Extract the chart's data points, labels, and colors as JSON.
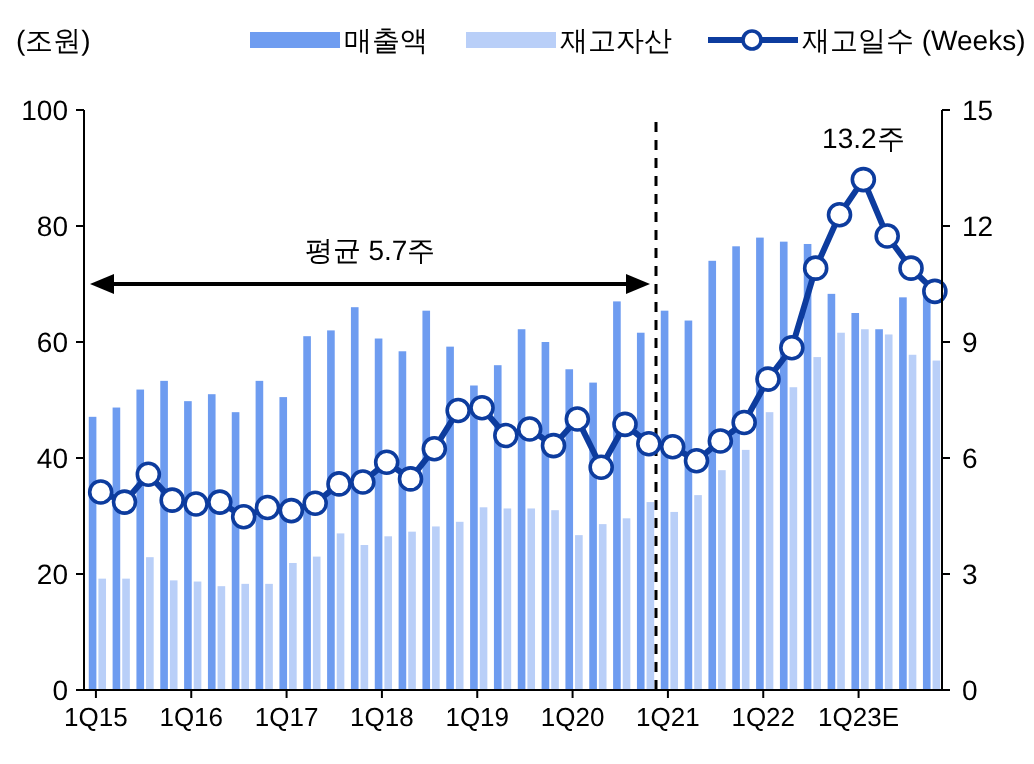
{
  "chart_data": {
    "type": "bar",
    "ylabel": "(조원)",
    "categories": [
      "1Q15",
      null,
      null,
      null,
      "1Q16",
      null,
      null,
      null,
      "1Q17",
      null,
      null,
      null,
      "1Q18",
      null,
      null,
      null,
      "1Q19",
      null,
      null,
      null,
      "1Q20",
      null,
      null,
      null,
      "1Q21",
      null,
      null,
      null,
      "1Q22",
      null,
      null,
      null,
      "1Q23E",
      null,
      null,
      null
    ],
    "series": [
      {
        "name": "매출액",
        "color": "#6e9cf0",
        "values": [
          47.1,
          48.7,
          51.8,
          53.3,
          49.8,
          51,
          47.9,
          53.3,
          50.5,
          61,
          62,
          66,
          60.6,
          58.4,
          65.4,
          59.2,
          52.5,
          56,
          62.2,
          60,
          55.3,
          53,
          67,
          61.6,
          65.4,
          63.7,
          74,
          76.5,
          78,
          77.3,
          76.9,
          68.3,
          65,
          62.2,
          67.7,
          69.6
        ]
      },
      {
        "name": "재고자산",
        "color": "#b9cff8",
        "values": [
          19.2,
          19.2,
          22.9,
          18.9,
          18.7,
          17.9,
          18.3,
          18.3,
          21.9,
          23,
          27,
          25,
          26.5,
          27.3,
          28.2,
          29,
          31.5,
          31.3,
          31.3,
          31,
          26.7,
          28.6,
          29.6,
          32.4,
          30.7,
          33.6,
          37.9,
          41.4,
          47.9,
          52.2,
          57.4,
          61.6,
          62.2,
          61.3,
          57.8,
          56.8
        ]
      },
      {
        "name": "재고일수 (Weeks)",
        "type": "line",
        "axis": "y2",
        "color": "#0d3c9e",
        "values": [
          5.12,
          4.86,
          5.58,
          4.91,
          4.81,
          4.86,
          4.48,
          4.72,
          4.64,
          4.83,
          5.33,
          5.38,
          5.89,
          5.46,
          6.24,
          7.23,
          7.3,
          6.58,
          6.75,
          6.32,
          7.01,
          5.76,
          6.87,
          6.37,
          6.29,
          5.93,
          6.44,
          6.92,
          8.04,
          8.85,
          10.91,
          12.29,
          13.2,
          11.74,
          10.91,
          10.31
        ]
      }
    ],
    "ylim": [
      0,
      100
    ],
    "yticks": [
      0,
      20,
      40,
      60,
      80,
      100
    ],
    "y2lim": [
      0,
      15
    ],
    "y2ticks": [
      0,
      3,
      6,
      9,
      12,
      15
    ],
    "marker": "circle",
    "legend": "top",
    "grid": false,
    "annotations": [
      "평균 5.7주",
      "13.2주"
    ]
  }
}
